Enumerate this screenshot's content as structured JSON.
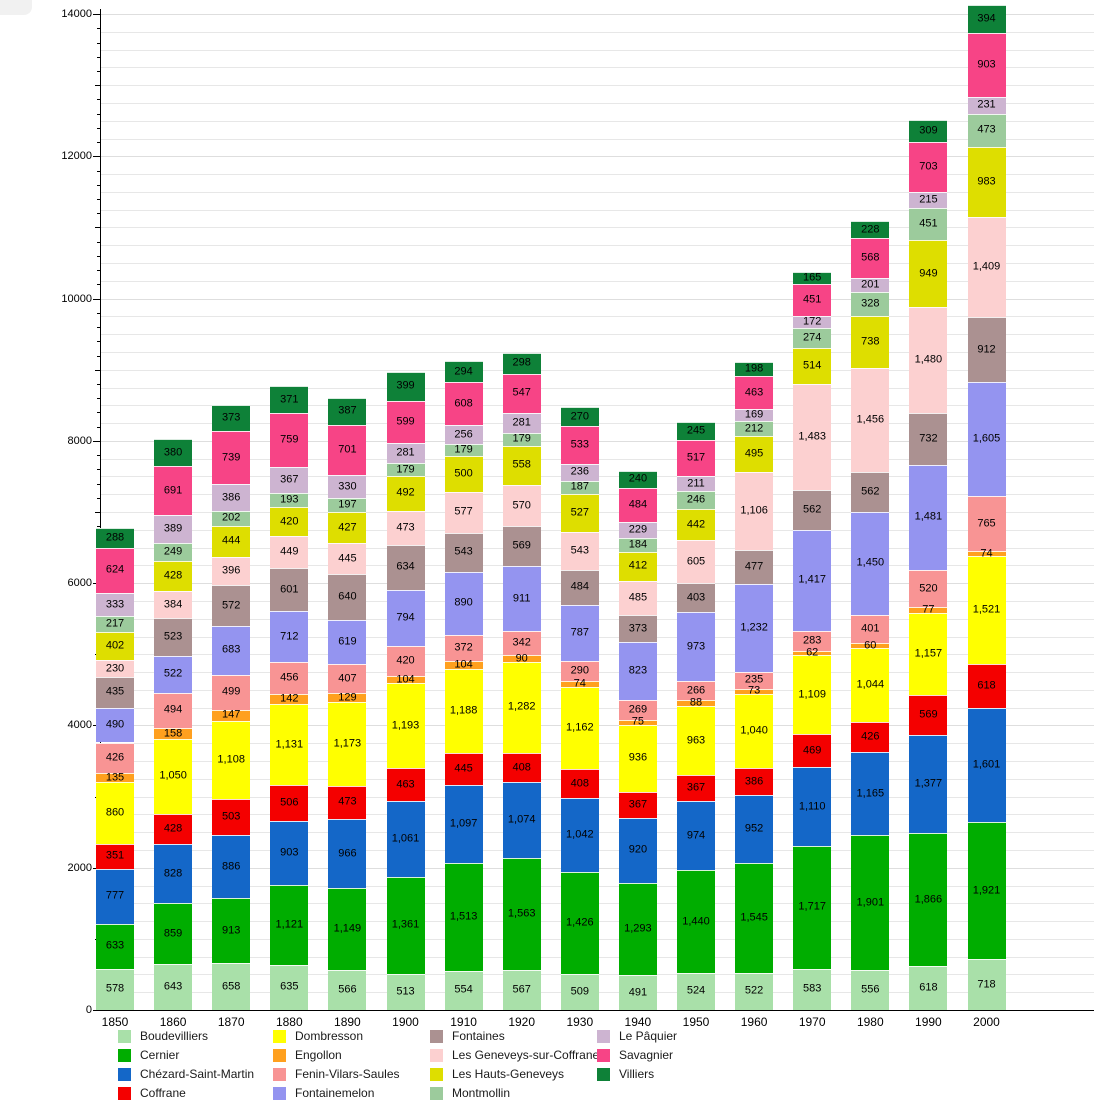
{
  "chart_data": {
    "type": "bar",
    "stacked": true,
    "title": "",
    "xlabel": "",
    "ylabel": "",
    "categories": [
      "1850",
      "1860",
      "1870",
      "1880",
      "1890",
      "1900",
      "1910",
      "1920",
      "1930",
      "1940",
      "1950",
      "1960",
      "1970",
      "1980",
      "1990",
      "2000"
    ],
    "series": [
      {
        "name": "Boudevilliers",
        "color": "#a9e0a9",
        "values": [
          578,
          643,
          658,
          635,
          566,
          513,
          554,
          567,
          509,
          491,
          524,
          522,
          583,
          556,
          618,
          718
        ]
      },
      {
        "name": "Cernier",
        "color": "#00ad00",
        "values": [
          633,
          859,
          913,
          1121,
          1149,
          1361,
          1513,
          1563,
          1426,
          1293,
          1440,
          1545,
          1717,
          1901,
          1866,
          1921
        ]
      },
      {
        "name": "Chézard-Saint-Martin",
        "color": "#1467c8",
        "values": [
          777,
          828,
          886,
          903,
          966,
          1061,
          1097,
          1074,
          1042,
          920,
          974,
          952,
          1110,
          1165,
          1377,
          1601
        ]
      },
      {
        "name": "Coffrane",
        "color": "#f40000",
        "values": [
          351,
          428,
          503,
          506,
          473,
          463,
          445,
          408,
          408,
          367,
          367,
          386,
          469,
          426,
          569,
          618
        ]
      },
      {
        "name": "Dombresson",
        "color": "#ffff00",
        "values": [
          860,
          1050,
          1108,
          1131,
          1173,
          1193,
          1188,
          1282,
          1162,
          936,
          963,
          1040,
          1109,
          1044,
          1157,
          1521
        ]
      },
      {
        "name": "Engollon",
        "color": "#ffa01e",
        "values": [
          135,
          158,
          147,
          142,
          129,
          104,
          104,
          90,
          74,
          75,
          88,
          73,
          62,
          60,
          77,
          74
        ]
      },
      {
        "name": "Fenin-Vilars-Saules",
        "color": "#f89494",
        "values": [
          426,
          494,
          499,
          456,
          407,
          420,
          372,
          342,
          290,
          269,
          266,
          235,
          283,
          401,
          520,
          765
        ]
      },
      {
        "name": "Fontainemelon",
        "color": "#9494f0",
        "values": [
          490,
          522,
          683,
          712,
          619,
          794,
          890,
          911,
          787,
          823,
          973,
          1232,
          1417,
          1450,
          1481,
          1605
        ]
      },
      {
        "name": "Fontaines",
        "color": "#ab9191",
        "values": [
          435,
          523,
          572,
          601,
          640,
          634,
          543,
          569,
          484,
          373,
          403,
          477,
          562,
          562,
          732,
          912
        ]
      },
      {
        "name": "Les Geneveys-sur-Coffrane",
        "color": "#fcd0d0",
        "values": [
          230,
          384,
          396,
          449,
          445,
          473,
          577,
          570,
          543,
          485,
          605,
          1106,
          1483,
          1456,
          1480,
          1409
        ]
      },
      {
        "name": "Les Hauts-Geneveys",
        "color": "#dede00",
        "values": [
          402,
          428,
          444,
          420,
          427,
          492,
          500,
          558,
          527,
          412,
          442,
          495,
          514,
          738,
          949,
          983
        ]
      },
      {
        "name": "Montmollin",
        "color": "#9ccb9c",
        "values": [
          217,
          249,
          202,
          193,
          197,
          179,
          179,
          179,
          187,
          184,
          246,
          212,
          274,
          328,
          451,
          473
        ]
      },
      {
        "name": "Le Pâquier",
        "color": "#cdb4d1",
        "values": [
          333,
          389,
          386,
          367,
          330,
          281,
          256,
          281,
          236,
          229,
          211,
          169,
          172,
          201,
          215,
          231
        ]
      },
      {
        "name": "Savagnier",
        "color": "#f74486",
        "values": [
          624,
          691,
          739,
          759,
          701,
          599,
          608,
          547,
          533,
          484,
          517,
          463,
          451,
          568,
          703,
          903
        ]
      },
      {
        "name": "Villiers",
        "color": "#0e8138",
        "values": [
          288,
          380,
          373,
          371,
          387,
          399,
          294,
          298,
          270,
          240,
          245,
          198,
          165,
          228,
          309,
          394
        ]
      }
    ],
    "ylim": [
      0,
      14000
    ],
    "y_major_tick": 2000,
    "y_minor_tick": 200,
    "y_gridline_step": 250,
    "grid": true,
    "legend_position": "bottom",
    "value_labels": "inside-each-segment, comma thousands separator",
    "y_axis_labels": [
      "0",
      "2000",
      "4000",
      "6000",
      "8000",
      "10000",
      "12000",
      "14000"
    ]
  }
}
